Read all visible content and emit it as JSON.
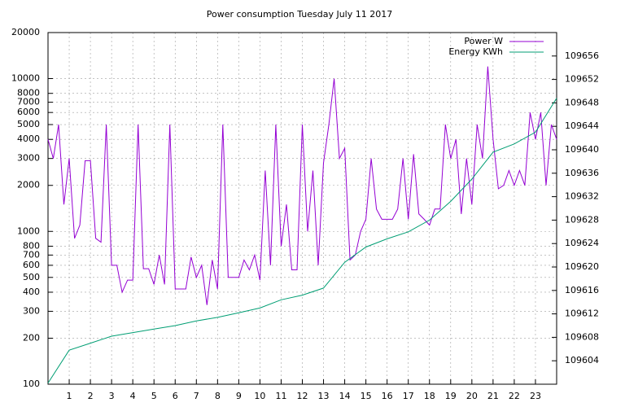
{
  "chart_data": {
    "type": "line",
    "title": "Power consumption Tuesday July 11 2017",
    "xlim": [
      0,
      24
    ],
    "xticks": [
      1,
      2,
      3,
      4,
      5,
      6,
      7,
      8,
      9,
      10,
      11,
      12,
      13,
      14,
      15,
      16,
      17,
      18,
      19,
      20,
      21,
      22,
      23
    ],
    "ylim": [
      100,
      20000
    ],
    "log_scale": true,
    "yticks": [
      100,
      200,
      300,
      400,
      500,
      600,
      700,
      800,
      1000,
      2000,
      3000,
      4000,
      5000,
      6000,
      7000,
      8000,
      10000,
      20000
    ],
    "y2lim": [
      109600,
      109660
    ],
    "y2ticks": [
      109604,
      109608,
      109612,
      109616,
      109620,
      109624,
      109628,
      109632,
      109636,
      109640,
      109644,
      109648,
      109652,
      109656
    ],
    "grid": true,
    "legend": "top-right",
    "series": [
      {
        "name": "Power W",
        "color": "#9400d3",
        "x": [
          0,
          0.25,
          0.5,
          0.75,
          1,
          1.25,
          1.5,
          1.75,
          2,
          2.25,
          2.5,
          2.75,
          3,
          3.25,
          3.5,
          3.75,
          4,
          4.25,
          4.5,
          4.75,
          5,
          5.25,
          5.5,
          5.75,
          6,
          6.25,
          6.5,
          6.75,
          7,
          7.25,
          7.5,
          7.75,
          8,
          8.25,
          8.5,
          8.75,
          9,
          9.25,
          9.5,
          9.75,
          10,
          10.25,
          10.5,
          10.75,
          11,
          11.25,
          11.5,
          11.75,
          12,
          12.25,
          12.5,
          12.75,
          13,
          13.25,
          13.5,
          13.75,
          14,
          14.25,
          14.5,
          14.75,
          15,
          15.25,
          15.5,
          15.75,
          16,
          16.25,
          16.5,
          16.75,
          17,
          17.25,
          17.5,
          17.75,
          18,
          18.25,
          18.5,
          18.75,
          19,
          19.25,
          19.5,
          19.75,
          20,
          20.25,
          20.5,
          20.75,
          21,
          21.25,
          21.5,
          21.75,
          22,
          22.25,
          22.5,
          22.75,
          23,
          23.25,
          23.5,
          23.75,
          24
        ],
        "values": [
          4000,
          3000,
          5000,
          1500,
          3000,
          900,
          1100,
          2900,
          2900,
          900,
          850,
          5000,
          600,
          600,
          400,
          480,
          480,
          5000,
          570,
          570,
          450,
          700,
          450,
          5000,
          420,
          420,
          420,
          680,
          500,
          600,
          330,
          650,
          420,
          5000,
          500,
          500,
          500,
          650,
          560,
          700,
          480,
          2500,
          600,
          5000,
          800,
          1500,
          560,
          560,
          5000,
          1000,
          2500,
          600,
          2800,
          5000,
          10000,
          3000,
          3500,
          650,
          700,
          1000,
          1200,
          3000,
          1400,
          1200,
          1200,
          1200,
          1400,
          3000,
          1200,
          3200,
          1300,
          1200,
          1100,
          1400,
          1400,
          5000,
          3000,
          4000,
          1300,
          3000,
          1500,
          5000,
          3000,
          12000,
          4000,
          1900,
          2000,
          2500,
          2000,
          2500,
          2000,
          6000,
          4000,
          6000,
          2000,
          5000,
          4000
        ]
      },
      {
        "name": "Energy KWh",
        "color": "#009e73",
        "axis": "y2",
        "x": [
          0,
          1,
          2,
          3,
          4,
          5,
          6,
          7,
          8,
          9,
          10,
          11,
          12,
          13,
          14,
          15,
          16,
          17,
          18,
          19,
          20,
          21,
          22,
          23,
          24
        ],
        "values": [
          109600.2,
          109605.8,
          109607,
          109608.2,
          109608.8,
          109609.4,
          109610,
          109610.8,
          109611.4,
          109612.2,
          109613,
          109614.4,
          109615.2,
          109616.4,
          109620.8,
          109623.4,
          109624.8,
          109626,
          109628,
          109631.2,
          109635,
          109639.6,
          109641,
          109643,
          109648.8
        ]
      }
    ]
  }
}
